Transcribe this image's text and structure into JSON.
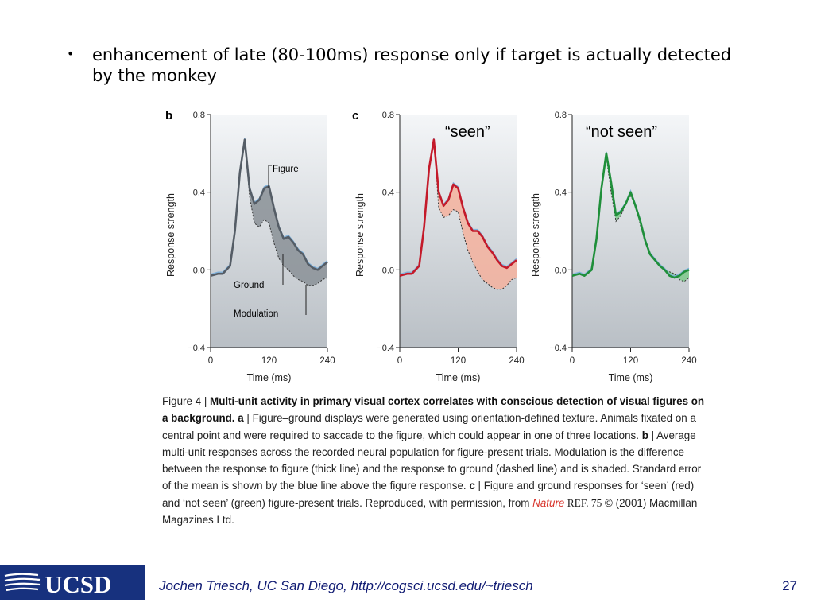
{
  "slide": {
    "bullet_symbol": "•",
    "bullet_text": "enhancement of late (80-100ms) response only if target is actually detected by the monkey",
    "page_number": "27",
    "footer": "Jochen Triesch, UC San Diego, http://cogsci.ucsd.edu/~triesch",
    "logo_text": "UCSD"
  },
  "figure": {
    "panel_b_letter": "b",
    "panel_c_letter": "c",
    "seen_label": "“seen”",
    "not_seen_label": "“not seen”",
    "annot_figure": "Figure",
    "annot_ground": "Ground",
    "annot_modulation": "Modulation",
    "ylabel": "Response strength",
    "xlabel": "Time (ms)"
  },
  "caption": {
    "fig_label": "Figure 4 | ",
    "title_bold": "Multi-unit activity in primary visual cortex correlates with conscious detection of visual figures on a background. a",
    "part_a": " | Figure–ground displays were generated using orientation-defined texture. Animals fixated on a central point and were required to saccade to the figure, which could appear in one of three locations. ",
    "b_bold": "b",
    "part_b": " | Average multi-unit responses across the recorded neural population for figure-present trials. Modulation is the difference between the response to figure (thick line) and the response to ground (dashed line) and is shaded. Standard error of the mean is shown by the blue line above the figure response. ",
    "c_bold": "c",
    "part_c": " | Figure and ground responses for ‘seen’ (red) and ‘not seen’ (green) figure-present trials. Reproduced, with permission, from ",
    "nature": "Nature",
    "ref": " REF. 75",
    "tail": " © (2001) Macmillan Magazines Ltd."
  },
  "chart_data": [
    {
      "type": "line",
      "panel": "b",
      "xlim": [
        0,
        240
      ],
      "ylim": [
        -0.4,
        0.8
      ],
      "xticks": [
        0,
        120,
        240
      ],
      "yticks": [
        "0.8",
        "0.4",
        "0.0",
        "−0.4"
      ],
      "xlabel": "Time (ms)",
      "ylabel": "Response strength",
      "color": "#555d66",
      "fill": "#8a9096",
      "x": [
        0,
        15,
        25,
        40,
        50,
        60,
        70,
        80,
        90,
        100,
        110,
        120,
        130,
        140,
        150,
        160,
        170,
        180,
        190,
        200,
        210,
        220,
        230,
        240
      ],
      "series": [
        {
          "name": "Figure",
          "values": [
            -0.03,
            -0.02,
            -0.02,
            0.02,
            0.2,
            0.5,
            0.67,
            0.42,
            0.34,
            0.36,
            0.42,
            0.43,
            0.32,
            0.22,
            0.16,
            0.17,
            0.14,
            0.1,
            0.08,
            0.03,
            0.01,
            0.0,
            0.02,
            0.04
          ]
        },
        {
          "name": "Ground",
          "values": [
            -0.03,
            -0.02,
            -0.02,
            0.02,
            0.2,
            0.5,
            0.67,
            0.38,
            0.24,
            0.22,
            0.26,
            0.24,
            0.14,
            0.06,
            0.02,
            0.0,
            -0.03,
            -0.05,
            -0.06,
            -0.08,
            -0.08,
            -0.07,
            -0.05,
            -0.04
          ]
        }
      ]
    },
    {
      "type": "line",
      "panel": "c-seen",
      "xlim": [
        0,
        240
      ],
      "ylim": [
        -0.4,
        0.8
      ],
      "xticks": [
        0,
        120,
        240
      ],
      "yticks": [
        "0.8",
        "0.4",
        "0.0",
        "−0.4"
      ],
      "xlabel": "Time (ms)",
      "ylabel": "Response strength",
      "color": "#c41a2a",
      "fill": "#f4b29e",
      "x": [
        0,
        15,
        25,
        40,
        50,
        60,
        70,
        80,
        90,
        100,
        110,
        120,
        130,
        140,
        150,
        160,
        170,
        180,
        190,
        200,
        210,
        220,
        230,
        240
      ],
      "series": [
        {
          "name": "",
          "values": [
            -0.03,
            -0.02,
            -0.02,
            0.02,
            0.22,
            0.52,
            0.67,
            0.4,
            0.33,
            0.36,
            0.44,
            0.42,
            0.32,
            0.24,
            0.2,
            0.2,
            0.17,
            0.12,
            0.09,
            0.05,
            0.02,
            0.01,
            0.03,
            0.05
          ]
        },
        {
          "name": "",
          "values": [
            -0.03,
            -0.02,
            -0.02,
            0.02,
            0.22,
            0.52,
            0.67,
            0.32,
            0.27,
            0.28,
            0.31,
            0.3,
            0.19,
            0.1,
            0.04,
            -0.01,
            -0.05,
            -0.07,
            -0.09,
            -0.1,
            -0.1,
            -0.08,
            -0.05,
            -0.04
          ]
        }
      ]
    },
    {
      "type": "line",
      "panel": "c-not-seen",
      "xlim": [
        0,
        240
      ],
      "ylim": [
        -0.4,
        0.8
      ],
      "xticks": [
        0,
        120,
        240
      ],
      "yticks": [
        "0.8",
        "0.4",
        "0.0",
        "−0.4"
      ],
      "xlabel": "Time (ms)",
      "ylabel": "Response strength",
      "color": "#1f8f3a",
      "fill": "#7fc98c",
      "x": [
        0,
        15,
        25,
        40,
        50,
        60,
        70,
        80,
        90,
        100,
        110,
        120,
        130,
        140,
        150,
        160,
        170,
        180,
        190,
        200,
        210,
        220,
        230,
        240
      ],
      "series": [
        {
          "name": "",
          "values": [
            -0.03,
            -0.02,
            -0.03,
            0.0,
            0.16,
            0.42,
            0.6,
            0.45,
            0.28,
            0.3,
            0.34,
            0.4,
            0.33,
            0.25,
            0.15,
            0.08,
            0.05,
            0.02,
            0.0,
            -0.03,
            -0.04,
            -0.03,
            -0.01,
            0.0
          ]
        },
        {
          "name": "",
          "values": [
            -0.03,
            -0.02,
            -0.03,
            0.0,
            0.16,
            0.42,
            0.58,
            0.4,
            0.25,
            0.28,
            0.34,
            0.38,
            0.34,
            0.23,
            0.14,
            0.08,
            0.05,
            0.03,
            0.0,
            -0.01,
            -0.02,
            -0.05,
            -0.06,
            -0.04
          ]
        }
      ]
    }
  ]
}
